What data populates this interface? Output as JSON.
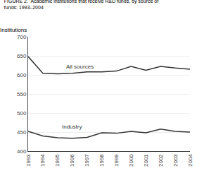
{
  "chart_data": {
    "type": "line",
    "title": "FIGURE 2.  Academic institutions that receive R&D funds, by source of\nfunds: 1993–2004",
    "ylabel": "Institutions",
    "x": [
      1993,
      1994,
      1995,
      1996,
      1997,
      1998,
      1999,
      2000,
      2001,
      2002,
      2003,
      2004
    ],
    "series": [
      {
        "color": "#333333",
        "values": [
          648,
          604,
          603,
          604,
          608,
          608,
          610,
          622,
          612,
          622,
          618,
          615
        ]
      },
      {
        "color": "#333333",
        "values": [
          452,
          440,
          435,
          434,
          436,
          448,
          447,
          452,
          448,
          458,
          452,
          450
        ]
      }
    ],
    "annotations": [
      {
        "text": "All sources",
        "x": 1995.5,
        "y": 622
      },
      {
        "text": "Industry",
        "x": 1995.2,
        "y": 464
      }
    ],
    "xlim": [
      1993,
      2004
    ],
    "xticks": [
      1993,
      1994,
      1995,
      1996,
      1997,
      1998,
      1999,
      2000,
      2001,
      2002,
      2003,
      2004
    ],
    "ylim": [
      400,
      700
    ],
    "yticks": [
      400,
      450,
      500,
      550,
      600,
      650,
      700
    ],
    "grid": true
  }
}
